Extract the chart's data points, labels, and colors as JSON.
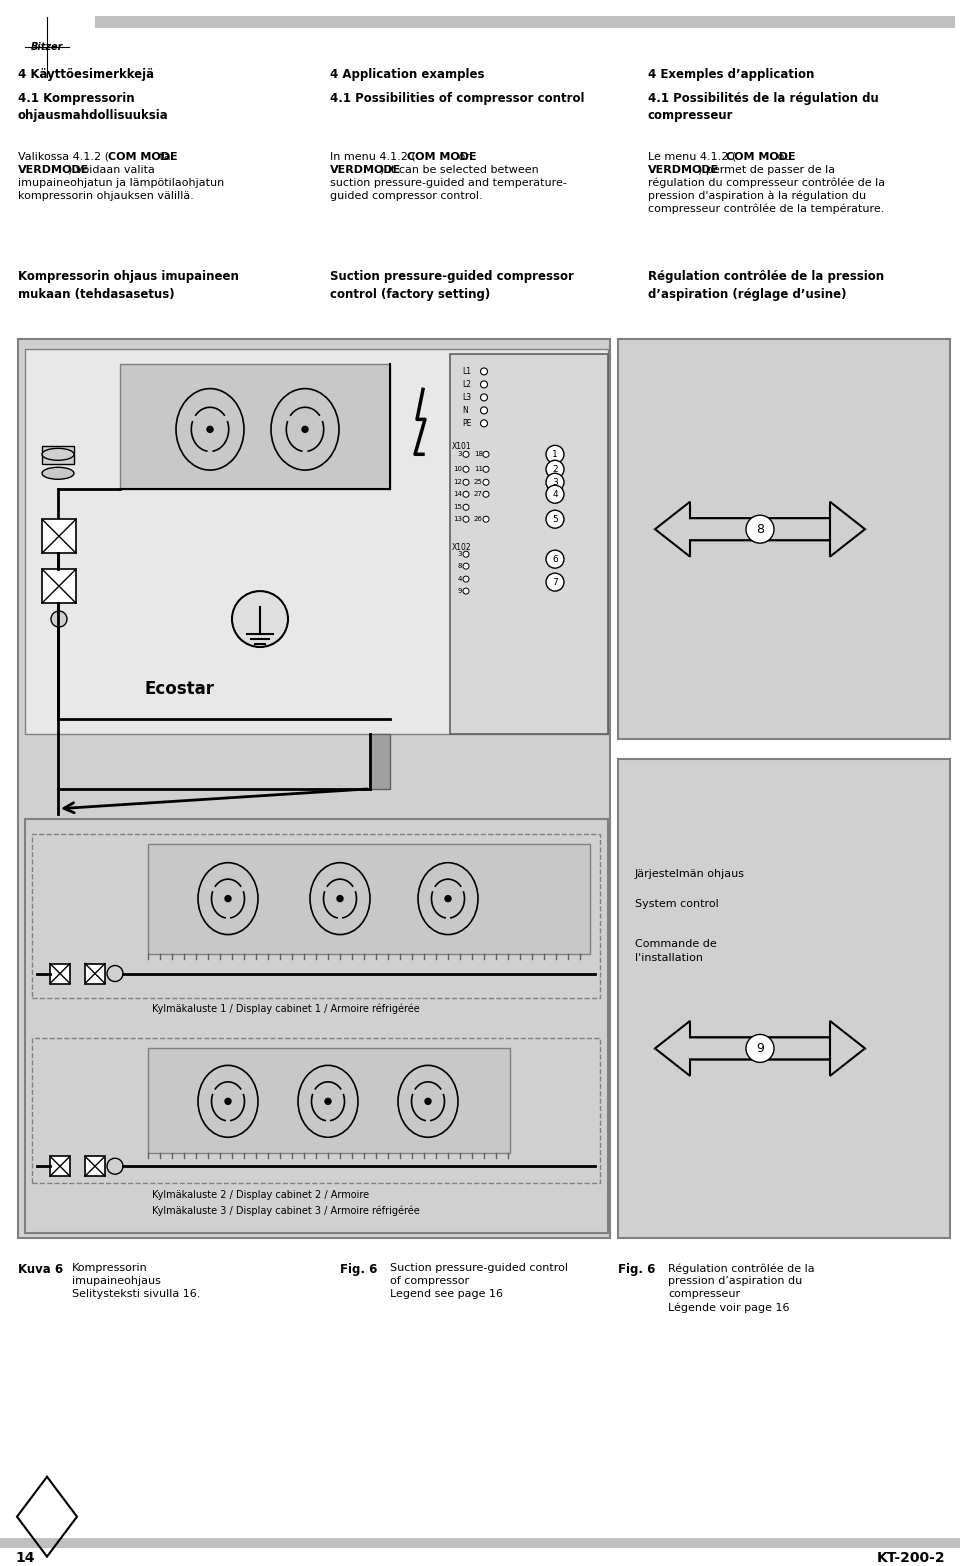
{
  "bg_color": "#ffffff",
  "page_width": 9.6,
  "page_height": 15.66,
  "header_bar_color": "#c0c0c0",
  "footer_bar_color": "#c0c0c0",
  "page_number": "14",
  "doc_number": "KT-200-2",
  "col1_heading": "4 Käyttöesimerkkejä",
  "col2_heading": "4 Application examples",
  "col3_heading": "4 Exemples d’application",
  "section_title_col1": "4.1 Kompressorin\nohjausmahdollisuuksia",
  "section_title_col2": "4.1 Possibilities of compressor control",
  "section_title_col3": "4.1 Possibilités de la régulation du\ncompresseur",
  "body_col1_line1": "Valikossa 4.1.2 (",
  "body_col1_bold1": "COM MODE",
  "body_col1_line1b": " tai",
  "body_col1_bold2": "VERDMODE",
  "body_col1_rest": ") voidaan valita\nimupaineohjatun ja lämpötilaohjatun\nkompressorin ohjauksen välillä.",
  "body_col2_line1": "In menu 4.1.2 (",
  "body_col2_bold1": "COM MODE",
  "body_col2_line1b": " or",
  "body_col2_bold2": "VERDMODE",
  "body_col2_rest": ") it can be selected between\nsuction pressure-guided and temperature-\nguided compressor control.",
  "body_col3_line1": "Le menu 4.1.2 (",
  "body_col3_bold1": "COM MODE",
  "body_col3_line1b": " ou",
  "body_col3_bold2": "VERDMODE",
  "body_col3_rest": ") permet de passer de la\nrégulation du compresseur contrôlée de la\npression d’aspiration à la régulation du\ncompresseur contrôlée de la température.",
  "label_col1": "Kompressorin ohjaus imupaineen\nmukaan (tehdasasetus)",
  "label_col2": "Suction pressure-guided compressor\ncontrol (factory setting)",
  "label_col3": "Régulation contrôlée de la pression\nd’aspiration (réglage d’usine)",
  "diag_bg": "#d0d0d0",
  "diag_inner_bg": "#e0e0e0",
  "right_panel_bg": "#d8d8d8",
  "cabinet_bg": "#d8d8d8",
  "fan_box_bg": "#c8c8c8",
  "kuva_label": "Kuva 6",
  "fig_label": "Fig. 6",
  "caption_col1_line1": "Kompressorin",
  "caption_col1_line2": "imupaineohjaus",
  "caption_col1_line3": "Selitysteksti sivulla 16.",
  "caption_col2_line1": "Suction pressure-guided control",
  "caption_col2_line2": "of compressor",
  "caption_col2_line3": "Legend see page 16",
  "caption_col3_line1": "Régulation contrôlée de la",
  "caption_col3_line2": "pression d’aspiration du",
  "caption_col3_line3": "compresseur",
  "caption_col3_line4": "Légende voir page 16"
}
